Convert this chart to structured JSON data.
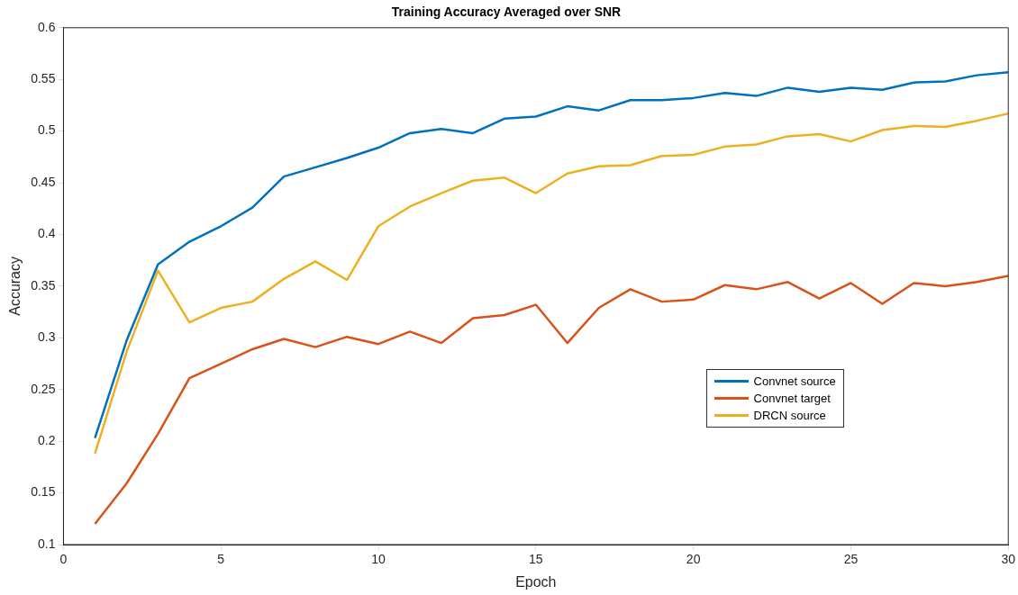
{
  "chart_data": {
    "type": "line",
    "title": "Training Accuracy Averaged over SNR",
    "xlabel": "Epoch",
    "ylabel": "Accuracy",
    "x": [
      1,
      2,
      3,
      4,
      5,
      6,
      7,
      8,
      9,
      10,
      11,
      12,
      13,
      14,
      15,
      16,
      17,
      18,
      19,
      20,
      21,
      22,
      23,
      24,
      25,
      26,
      27,
      28,
      29,
      30
    ],
    "series": [
      {
        "name": "Convnet source",
        "color": "#0072bd",
        "values": [
          0.203,
          0.297,
          0.371,
          0.393,
          0.408,
          0.426,
          0.456,
          0.465,
          0.474,
          0.484,
          0.498,
          0.502,
          0.498,
          0.512,
          0.514,
          0.524,
          0.52,
          0.53,
          0.53,
          0.532,
          0.537,
          0.534,
          0.542,
          0.538,
          0.542,
          0.54,
          0.547,
          0.548,
          0.554,
          0.557
        ]
      },
      {
        "name": "Convnet target",
        "color": "#d95319",
        "values": [
          0.12,
          0.159,
          0.207,
          0.261,
          0.275,
          0.289,
          0.299,
          0.291,
          0.301,
          0.294,
          0.306,
          0.295,
          0.319,
          0.322,
          0.332,
          0.295,
          0.329,
          0.347,
          0.335,
          0.337,
          0.351,
          0.347,
          0.354,
          0.338,
          0.353,
          0.333,
          0.353,
          0.35,
          0.354,
          0.36
        ]
      },
      {
        "name": "DRCN source",
        "color": "#edb120",
        "values": [
          0.188,
          0.286,
          0.365,
          0.315,
          0.329,
          0.335,
          0.357,
          0.374,
          0.356,
          0.408,
          0.427,
          0.44,
          0.452,
          0.455,
          0.44,
          0.459,
          0.466,
          0.467,
          0.476,
          0.477,
          0.485,
          0.487,
          0.495,
          0.497,
          0.49,
          0.501,
          0.505,
          0.504,
          0.51,
          0.517
        ]
      }
    ],
    "xlim": [
      0,
      30
    ],
    "xticks": [
      0,
      5,
      10,
      15,
      20,
      25,
      30
    ],
    "ylim": [
      0.1,
      0.6
    ],
    "yticks": [
      0.1,
      0.15,
      0.2,
      0.25,
      0.3,
      0.35,
      0.4,
      0.45,
      0.5,
      0.55,
      0.6
    ],
    "grid": false,
    "legend": "right",
    "marker": "none",
    "line_style": "solid"
  }
}
